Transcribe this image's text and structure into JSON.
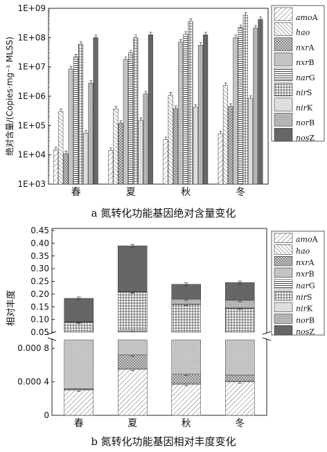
{
  "chart_data": [
    {
      "type": "bar",
      "title": "",
      "caption": "a 氮转化功能基因绝对含量变化",
      "xlabel": "",
      "ylabel": "绝对含量/(Copies·mg⁻¹ MLSS)",
      "yscale": "log",
      "ylim": [
        1000,
        1000000000
      ],
      "yticks": [
        "1E+03",
        "1E+04",
        "1E+05",
        "1E+06",
        "1E+07",
        "1E+08",
        "1E+09"
      ],
      "categories": [
        "春",
        "夏",
        "秋",
        "冬"
      ],
      "legend_position": "right",
      "series": [
        {
          "name": "amoA",
          "legend_italic": "amo",
          "legend_plain": "A",
          "values": [
            15000,
            14000,
            33000,
            52000
          ]
        },
        {
          "name": "hao",
          "legend_italic": "hao",
          "legend_plain": "",
          "values": [
            300000,
            370000,
            1100000,
            2300000
          ]
        },
        {
          "name": "nxrA",
          "legend_italic": "nxr",
          "legend_plain": "A",
          "values": [
            11000,
            120000,
            380000,
            450000
          ]
        },
        {
          "name": "nxrB",
          "legend_italic": "nxr",
          "legend_plain": "B",
          "values": [
            8500000,
            18000000,
            70000000,
            100000000
          ]
        },
        {
          "name": "narG",
          "legend_italic": "nar",
          "legend_plain": "G",
          "values": [
            22000000,
            30000000,
            130000000,
            220000000
          ]
        },
        {
          "name": "nirS",
          "legend_italic": "nir",
          "legend_plain": "S",
          "values": [
            60000000,
            100000000,
            360000000,
            580000000
          ]
        },
        {
          "name": "nirK",
          "legend_italic": "nir",
          "legend_plain": "K",
          "values": [
            55000,
            150000,
            420000,
            850000
          ]
        },
        {
          "name": "norB",
          "legend_italic": "nor",
          "legend_plain": "B",
          "values": [
            2800000,
            1200000,
            55000000,
            210000000
          ]
        },
        {
          "name": "nosZ",
          "legend_italic": "nos",
          "legend_plain": "Z",
          "values": [
            100000000,
            125000000,
            125000000,
            420000000
          ]
        }
      ]
    },
    {
      "type": "bar",
      "stacked": true,
      "title": "",
      "caption": "b 氮转化功能基因相对丰度变化",
      "xlabel": "",
      "ylabel": "相对丰度",
      "axis_break": true,
      "upper_yticks": [
        "0.05",
        "0.10",
        "0.15",
        "0.20",
        "0.25",
        "0.30",
        "0.35",
        "0.40",
        "0.45"
      ],
      "lower_yticks": [
        "0",
        "0.000 4",
        "0.000 8"
      ],
      "categories": [
        "春",
        "夏",
        "秋",
        "冬"
      ],
      "legend_position": "right",
      "series": [
        {
          "name": "amoA",
          "legend_italic": "amo",
          "legend_plain": "A",
          "values": [
            0.0003,
            0.00055,
            0.00037,
            0.0004
          ]
        },
        {
          "name": "hao",
          "legend_italic": "hao",
          "legend_plain": "",
          "values": [
            1e-05,
            1e-05,
            1e-05,
            1e-05
          ]
        },
        {
          "name": "nxrA",
          "legend_italic": "nxr",
          "legend_plain": "A",
          "values": [
            1e-05,
            0.00016,
            0.00011,
            7e-05
          ]
        },
        {
          "name": "nxrB",
          "legend_italic": "nxr",
          "legend_plain": "B",
          "values": [
            0.02,
            0.028,
            0.02,
            0.02
          ]
        },
        {
          "name": "narG",
          "legend_italic": "nar",
          "legend_plain": "G",
          "values": [
            0.02,
            0.03,
            0.02,
            0.02
          ]
        },
        {
          "name": "nirS",
          "legend_italic": "nir",
          "legend_plain": "S",
          "values": [
            0.05,
            0.15,
            0.12,
            0.105
          ]
        },
        {
          "name": "nirK",
          "legend_italic": "nir",
          "legend_plain": "K",
          "values": [
            2e-05,
            4e-05,
            3e-05,
            5e-05
          ]
        },
        {
          "name": "norB",
          "legend_italic": "nor",
          "legend_plain": "B",
          "values": [
            0.001,
            0.001,
            0.02,
            0.03
          ]
        },
        {
          "name": "nosZ",
          "legend_italic": "nos",
          "legend_plain": "Z",
          "values": [
            0.092,
            0.18,
            0.058,
            0.07
          ]
        }
      ]
    }
  ]
}
